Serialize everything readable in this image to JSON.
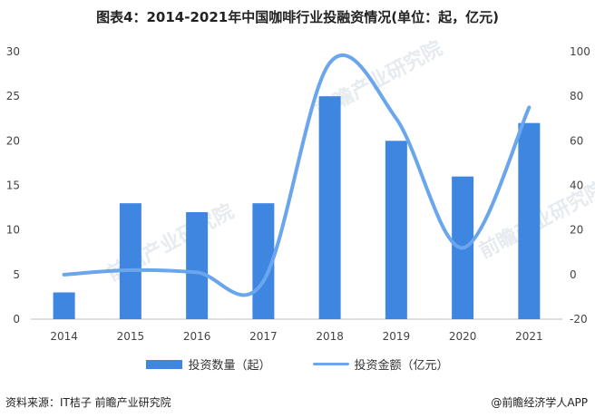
{
  "chart_data": {
    "type": "bar",
    "title": "图表4：2014-2021年中国咖啡行业投融资情况(单位：起，亿元)",
    "categories": [
      "2014",
      "2015",
      "2016",
      "2017",
      "2018",
      "2019",
      "2020",
      "2021"
    ],
    "series": [
      {
        "name": "投资数量（起）",
        "type": "bar",
        "axis": "left",
        "color": "#3f86e0",
        "values": [
          3,
          13,
          12,
          13,
          25,
          20,
          16,
          22
        ]
      },
      {
        "name": "投资金额（亿元）",
        "type": "line",
        "axis": "right",
        "color": "#6aa6ee",
        "values": [
          0,
          2,
          1,
          -3,
          95,
          70,
          12,
          75
        ]
      }
    ],
    "y_left": {
      "min": 0,
      "max": 30,
      "ticks": [
        0,
        5,
        10,
        15,
        20,
        25,
        30
      ]
    },
    "y_right": {
      "min": -20,
      "max": 100,
      "ticks": [
        -20,
        0,
        20,
        40,
        60,
        80,
        100
      ]
    },
    "grid": false,
    "legend_position": "bottom"
  },
  "source": "资料来源：IT桔子 前瞻产业研究院",
  "credit": "@前瞻经济学人APP",
  "watermark": "前瞻产业研究院"
}
